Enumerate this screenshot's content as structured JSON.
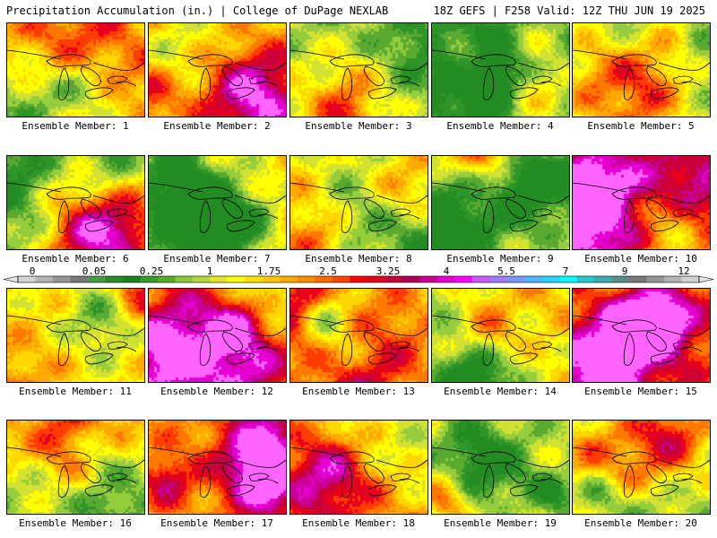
{
  "header": {
    "left": "Precipitation Accumulation (in.) | College of DuPage NEXLAB",
    "right": "18Z GEFS | F258 Valid: 12Z THU JUN 19 2025"
  },
  "colorbar": {
    "tick_labels": [
      "0",
      "0.05",
      "0.25",
      "1",
      "1.75",
      "2.5",
      "3.25",
      "4",
      "5.5",
      "7",
      "9",
      "12"
    ],
    "colors": [
      "#d4d4d4",
      "#b4b4b4",
      "#969696",
      "#787878",
      "#4a9a4a",
      "#2b8b2b",
      "#1f7f1f",
      "#3a9a2a",
      "#5aaa2a",
      "#8cc83c",
      "#b4d83c",
      "#e6e628",
      "#ffff00",
      "#ffe000",
      "#ffc800",
      "#ffaa00",
      "#ff8c00",
      "#ff6a00",
      "#ff4600",
      "#ff0000",
      "#e6001e",
      "#c8003c",
      "#aa005a",
      "#c8008c",
      "#e600c8",
      "#ff00ff",
      "#c85aff",
      "#a07aff",
      "#7a96ff",
      "#50b4ff",
      "#28d2ff",
      "#00ffff",
      "#28c8c8",
      "#3caaaa",
      "#5a8c8c",
      "#787878",
      "#969696",
      "#b4b4b4",
      "#d2d2d2"
    ]
  },
  "panels": [
    {
      "label": "Ensemble Member: 1",
      "level": 0.62
    },
    {
      "label": "Ensemble Member: 2",
      "level": 0.72
    },
    {
      "label": "Ensemble Member: 3",
      "level": 0.5
    },
    {
      "label": "Ensemble Member: 4",
      "level": 0.35
    },
    {
      "label": "Ensemble Member: 5",
      "level": 0.42
    },
    {
      "label": "Ensemble Member: 6",
      "level": 0.4
    },
    {
      "label": "Ensemble Member: 7",
      "level": 0.6
    },
    {
      "label": "Ensemble Member: 8",
      "level": 0.55
    },
    {
      "label": "Ensemble Member: 9",
      "level": 0.58
    },
    {
      "label": "Ensemble Member: 10",
      "level": 0.62
    },
    {
      "label": "Ensemble Member: 11",
      "level": 0.55
    },
    {
      "label": "Ensemble Member: 12",
      "level": 0.63
    },
    {
      "label": "Ensemble Member: 13",
      "level": 0.6
    },
    {
      "label": "Ensemble Member: 14",
      "level": 0.55
    },
    {
      "label": "Ensemble Member: 15",
      "level": 0.72
    },
    {
      "label": "Ensemble Member: 16",
      "level": 0.6
    },
    {
      "label": "Ensemble Member: 17",
      "level": 0.66
    },
    {
      "label": "Ensemble Member: 18",
      "level": 0.62
    },
    {
      "label": "Ensemble Member: 19",
      "level": 0.4
    },
    {
      "label": "Ensemble Member: 20",
      "level": 0.5
    }
  ]
}
